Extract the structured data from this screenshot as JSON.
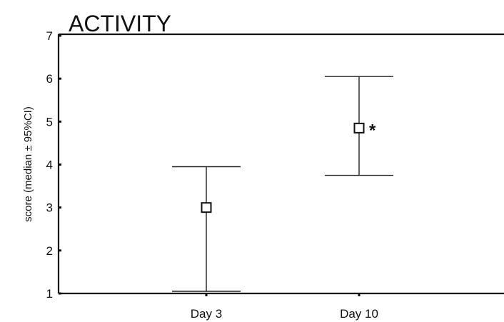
{
  "chart_data": {
    "type": "scatter",
    "title": "ACTIVITY",
    "xlabel": "",
    "ylabel": "score (median ± 95%CI)",
    "categories": [
      "Day 3",
      "Day 10"
    ],
    "series": [
      {
        "values": [
          3.0,
          4.85
        ],
        "ci_low": [
          1.05,
          3.75
        ],
        "ci_high": [
          3.95,
          6.05
        ],
        "annotations": [
          "",
          "*"
        ]
      }
    ],
    "ylim": [
      1,
      7
    ],
    "yticks": [
      "1",
      "2",
      "3",
      "4",
      "5",
      "6",
      "7"
    ],
    "grid": false,
    "legend": "none"
  }
}
